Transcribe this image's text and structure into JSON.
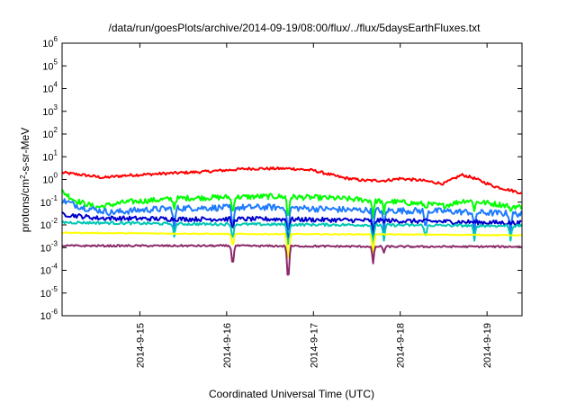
{
  "chart_data": {
    "type": "line",
    "title": "/data/run/goesPlots/archive/2014-09-19/08:00/flux/../flux/5daysEarthFluxes.txt",
    "xlabel": "Coordinated Universal Time (UTC)",
    "ylabel": {
      "base": "protons/cm",
      "sup": "2",
      "rest": "-s-sr-MeV"
    },
    "y_scale": "log",
    "ylim_exponents": [
      -6,
      6
    ],
    "y_tick_exponents": [
      -6,
      -5,
      -4,
      -3,
      -2,
      -1,
      0,
      1,
      2,
      3,
      4,
      5,
      6
    ],
    "x_range_days": [
      "2014-09-14T02:30",
      "2014-09-19T09:40"
    ],
    "x_ticks": [
      "2014-9-15",
      "2014-9-16",
      "2014-9-17",
      "2014-9-18",
      "2014-9-19"
    ],
    "grid": false,
    "legend": "none",
    "series": [
      {
        "color": "#ff0000",
        "base_values": [
          [
            "2014-09-14T02:30",
            2.0
          ],
          [
            "2014-09-14T08:00",
            1.6
          ],
          [
            "2014-09-14T14:00",
            1.2
          ],
          [
            "2014-09-14T20:00",
            1.5
          ],
          [
            "2014-09-15T06:00",
            1.8
          ],
          [
            "2014-09-15T18:00",
            2.2
          ],
          [
            "2014-09-16T06:00",
            3.0
          ],
          [
            "2014-09-16T18:00",
            3.0
          ],
          [
            "2014-09-17T00:00",
            2.5
          ],
          [
            "2014-09-17T08:00",
            1.2
          ],
          [
            "2014-09-17T14:00",
            0.9
          ],
          [
            "2014-09-17T20:00",
            0.9
          ],
          [
            "2014-09-18T00:00",
            1.1
          ],
          [
            "2014-09-18T06:00",
            0.9
          ],
          [
            "2014-09-18T12:00",
            0.65
          ],
          [
            "2014-09-18T17:00",
            1.6
          ],
          [
            "2014-09-18T20:00",
            1.2
          ],
          [
            "2014-09-19T02:00",
            0.5
          ],
          [
            "2014-09-19T09:40",
            0.25
          ]
        ]
      },
      {
        "color": "#00ff00",
        "base_values": [
          [
            "2014-09-14T02:30",
            0.3
          ],
          [
            "2014-09-14T06:00",
            0.12
          ],
          [
            "2014-09-14T12:00",
            0.06
          ],
          [
            "2014-09-14T20:00",
            0.1
          ],
          [
            "2014-09-15T12:00",
            0.15
          ],
          [
            "2014-09-16T12:00",
            0.18
          ],
          [
            "2014-09-17T06:00",
            0.15
          ],
          [
            "2014-09-18T00:00",
            0.1
          ],
          [
            "2014-09-18T12:00",
            0.07
          ],
          [
            "2014-09-18T18:00",
            0.12
          ],
          [
            "2014-09-19T09:40",
            0.06
          ]
        ]
      },
      {
        "color": "#1e7bff",
        "base_values": [
          [
            "2014-09-14T02:30",
            0.12
          ],
          [
            "2014-09-14T08:00",
            0.06
          ],
          [
            "2014-09-14T16:00",
            0.035
          ],
          [
            "2014-09-15T00:00",
            0.045
          ],
          [
            "2014-09-15T12:00",
            0.055
          ],
          [
            "2014-09-16T12:00",
            0.06
          ],
          [
            "2014-09-17T12:00",
            0.045
          ],
          [
            "2014-09-18T12:00",
            0.04
          ],
          [
            "2014-09-19T09:40",
            0.03
          ]
        ]
      },
      {
        "color": "#0000cc",
        "base_values": [
          [
            "2014-09-14T02:30",
            0.03
          ],
          [
            "2014-09-14T12:00",
            0.02
          ],
          [
            "2014-09-15T12:00",
            0.018
          ],
          [
            "2014-09-16T12:00",
            0.018
          ],
          [
            "2014-09-17T12:00",
            0.016
          ],
          [
            "2014-09-18T12:00",
            0.014
          ],
          [
            "2014-09-19T09:40",
            0.012
          ]
        ]
      },
      {
        "color": "#00c8b4",
        "base_values": [
          [
            "2014-09-14T02:30",
            0.013
          ],
          [
            "2014-09-15T12:00",
            0.011
          ],
          [
            "2014-09-17T12:00",
            0.01
          ],
          [
            "2014-09-19T09:40",
            0.009
          ]
        ]
      },
      {
        "color": "#ffff00",
        "base_values": [
          [
            "2014-09-14T02:30",
            0.0045
          ],
          [
            "2014-09-16T00:00",
            0.004
          ],
          [
            "2014-09-18T00:00",
            0.0038
          ],
          [
            "2014-09-19T09:40",
            0.0035
          ]
        ]
      },
      {
        "color": "#8b2a6b",
        "base_values": [
          [
            "2014-09-14T02:30",
            0.0012
          ],
          [
            "2014-09-16T00:00",
            0.0012
          ],
          [
            "2014-09-18T00:00",
            0.0011
          ],
          [
            "2014-09-19T09:40",
            0.0011
          ]
        ]
      }
    ],
    "dips": [
      {
        "x": "2014-09-15T09:30",
        "min": {
          "#00ff00": 0.05,
          "#1e7bff": 0.005,
          "#00c8b4": 0.003
        }
      },
      {
        "x": "2014-09-16T01:40",
        "min": {
          "#00ff00": 0.02,
          "#1e7bff": 0.004,
          "#0000cc": 0.005,
          "#00c8b4": 0.0015,
          "#ffff00": 0.0008,
          "#8b2a6b": 0.0001
        }
      },
      {
        "x": "2014-09-16T17:00",
        "min": {
          "#00ff00": 0.01,
          "#1e7bff": 0.002,
          "#0000cc": 0.001,
          "#00c8b4": 0.0005,
          "#ffff00": 0.0001,
          "#8b2a6b": 1.3e-05
        }
      },
      {
        "x": "2014-09-17T16:30",
        "min": {
          "#00ff00": 0.02,
          "#1e7bff": 0.003,
          "#0000cc": 0.003,
          "#00c8b4": 0.001,
          "#ffff00": 0.0005,
          "#8b2a6b": 0.0002
        }
      },
      {
        "x": "2014-09-17T19:30",
        "min": {
          "#00ff00": 0.03,
          "#1e7bff": 0.005,
          "#00c8b4": 0.002,
          "#8b2a6b": 0.0006
        }
      },
      {
        "x": "2014-09-18T07:00",
        "min": {
          "#00ff00": 0.05,
          "#1e7bff": 0.004,
          "#00c8b4": 0.002
        }
      },
      {
        "x": "2014-09-18T20:30",
        "min": {
          "#00ff00": 0.04,
          "#1e7bff": 0.004,
          "#00c8b4": 0.002
        }
      },
      {
        "x": "2014-09-19T06:30",
        "min": {
          "#00ff00": 0.04,
          "#1e7bff": 0.004,
          "#00c8b4": 0.002
        }
      }
    ]
  }
}
